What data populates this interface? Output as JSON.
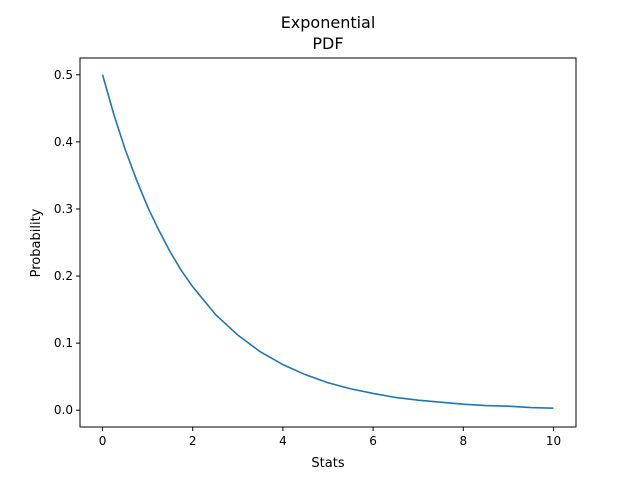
{
  "chart_data": {
    "type": "line",
    "title": [
      "Exponential",
      "PDF"
    ],
    "xlabel": "Stats",
    "ylabel": "Probability",
    "xlim": [
      -0.5,
      10.5
    ],
    "ylim": [
      -0.025,
      0.525
    ],
    "xticks": [
      0,
      2,
      4,
      6,
      8,
      10
    ],
    "xtick_labels": [
      "0",
      "2",
      "4",
      "6",
      "8",
      "10"
    ],
    "yticks": [
      0.0,
      0.1,
      0.2,
      0.3,
      0.4,
      0.5
    ],
    "ytick_labels": [
      "0.0",
      "0.1",
      "0.2",
      "0.3",
      "0.4",
      "0.5"
    ],
    "grid": false,
    "series": [
      {
        "color": "#1f77b4",
        "x": [
          0,
          0.25,
          0.5,
          0.75,
          1,
          1.25,
          1.5,
          1.75,
          2,
          2.5,
          3,
          3.5,
          4,
          4.5,
          5,
          5.5,
          6,
          6.5,
          7,
          7.5,
          8,
          8.5,
          9,
          9.5,
          10
        ],
        "y": [
          0.5,
          0.441,
          0.389,
          0.344,
          0.303,
          0.268,
          0.236,
          0.208,
          0.184,
          0.143,
          0.112,
          0.087,
          0.068,
          0.053,
          0.041,
          0.032,
          0.025,
          0.019,
          0.015,
          0.012,
          0.009,
          0.007,
          0.006,
          0.004,
          0.003
        ]
      }
    ]
  }
}
